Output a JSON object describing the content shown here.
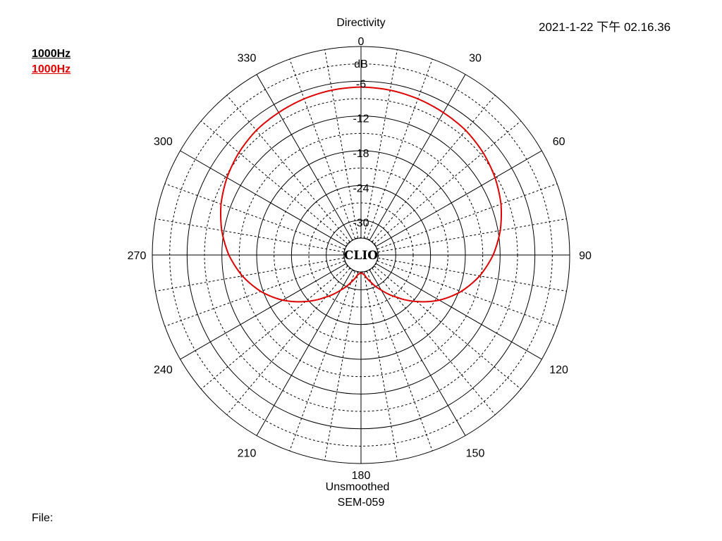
{
  "header": {
    "title": "Directivity",
    "timestamp": "2021-1-22 下午 02.16.36"
  },
  "legend": [
    {
      "label": "1000Hz",
      "color": "#000000"
    },
    {
      "label": "1000Hz",
      "color": "#e00000"
    }
  ],
  "footer": {
    "smoothing": "Unsmoothed",
    "model": "SEM-059",
    "file_label": "File:"
  },
  "center_logo": "CLIO",
  "colors": {
    "trace": "#e00000",
    "grid": "#000000"
  },
  "chart_data": {
    "type": "polar",
    "title": "Directivity",
    "unit": "dB",
    "radial_range": [
      -36,
      0
    ],
    "radial_ticks": [
      0,
      -6,
      -12,
      -18,
      -24,
      -30
    ],
    "angle_ticks": [
      0,
      30,
      60,
      90,
      120,
      150,
      180,
      210,
      240,
      270,
      300,
      330
    ],
    "angle_direction": "clockwise",
    "zero_angle": "top",
    "grid": true,
    "series": [
      {
        "name": "1000Hz",
        "color": "#e00000",
        "angles": [
          0,
          10,
          20,
          30,
          40,
          50,
          60,
          70,
          80,
          90,
          100,
          110,
          120,
          130,
          140,
          150,
          160,
          170,
          180,
          190,
          200,
          210,
          220,
          230,
          240,
          250,
          260,
          270,
          280,
          290,
          300,
          310,
          320,
          330,
          340,
          350,
          360
        ],
        "values": [
          -7.0,
          -7.1,
          -7.3,
          -7.6,
          -7.9,
          -8.5,
          -9.3,
          -10.3,
          -11.6,
          -13.2,
          -15.2,
          -17.6,
          -20.4,
          -23.5,
          -26.5,
          -29.0,
          -31.0,
          -32.5,
          -33.0,
          -32.5,
          -31.0,
          -29.0,
          -26.5,
          -23.5,
          -20.4,
          -17.6,
          -15.2,
          -13.2,
          -11.6,
          -10.3,
          -9.3,
          -8.5,
          -7.9,
          -7.6,
          -7.3,
          -7.1,
          -7.0
        ]
      }
    ]
  }
}
